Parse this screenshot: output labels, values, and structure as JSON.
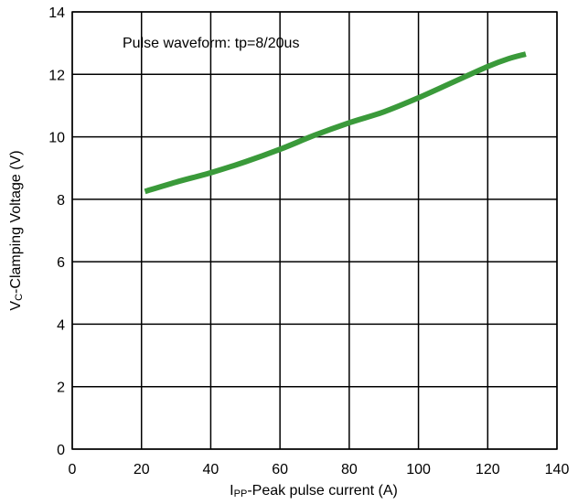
{
  "chart_data": {
    "type": "line",
    "title": "",
    "annotation": "Pulse waveform: tp=8/20us",
    "xlabel": {
      "prefix": "I",
      "sub": "PP",
      "suffix": "-Peak pulse current (A)"
    },
    "ylabel": {
      "prefix": "V",
      "sub": "C",
      "suffix": "-Clamping Voltage (V)"
    },
    "xlim": [
      0,
      140
    ],
    "ylim": [
      0,
      14
    ],
    "xticks": [
      0,
      20,
      40,
      60,
      80,
      100,
      120,
      140
    ],
    "yticks": [
      0,
      2,
      4,
      6,
      8,
      10,
      12,
      14
    ],
    "grid": true,
    "series": [
      {
        "color": "#3a9a3a",
        "x": [
          21,
          30,
          40,
          50,
          60,
          70,
          80,
          90,
          100,
          110,
          120,
          126,
          131
        ],
        "y": [
          8.25,
          8.55,
          8.85,
          9.2,
          9.6,
          10.05,
          10.45,
          10.8,
          11.25,
          11.75,
          12.25,
          12.5,
          12.65
        ]
      }
    ]
  }
}
